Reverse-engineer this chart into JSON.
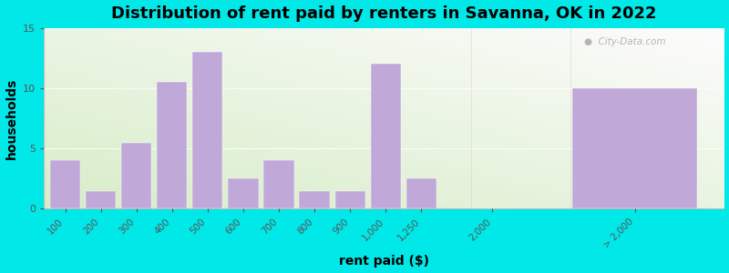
{
  "title": "Distribution of rent paid by renters in Savanna, OK in 2022",
  "xlabel": "rent paid ($)",
  "ylabel": "households",
  "categories": [
    "100",
    "200",
    "300",
    "400",
    "500",
    "600",
    "700",
    "800",
    "900",
    "1,000",
    "1,250",
    "2,000",
    "> 2,000"
  ],
  "values": [
    4,
    1.5,
    5.5,
    10.5,
    13,
    2.5,
    4,
    1.5,
    1.5,
    12,
    2.5,
    0,
    10
  ],
  "bar_color": "#c0a8d8",
  "ylim": [
    0,
    15
  ],
  "yticks": [
    0,
    5,
    10,
    15
  ],
  "background_outer": "#00e8e8",
  "title_fontsize": 13,
  "axis_label_fontsize": 10,
  "watermark": "  City-Data.com",
  "bg_colors": [
    "#d8ecd0",
    "#eaf4f8"
  ],
  "positions": [
    0,
    1,
    2,
    3,
    4,
    5,
    6,
    7,
    8,
    9,
    10,
    12,
    16
  ],
  "widths": [
    0.85,
    0.85,
    0.85,
    0.85,
    0.85,
    0.85,
    0.85,
    0.85,
    0.85,
    0.85,
    0.85,
    0.85,
    3.5
  ]
}
